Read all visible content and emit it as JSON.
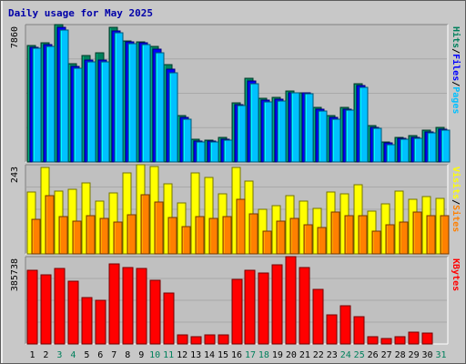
{
  "chart_data": {
    "type": "bar",
    "title": "Daily usage for May 2025",
    "categories": [
      "1",
      "2",
      "3",
      "4",
      "5",
      "6",
      "7",
      "8",
      "9",
      "10",
      "11",
      "12",
      "13",
      "14",
      "15",
      "16",
      "17",
      "18",
      "19",
      "20",
      "21",
      "22",
      "23",
      "24",
      "25",
      "26",
      "27",
      "28",
      "29",
      "30",
      "31"
    ],
    "weekend_categories": [
      "3",
      "4",
      "10",
      "11",
      "17",
      "18",
      "24",
      "25",
      "31"
    ],
    "colors": {
      "hits": "#00805c",
      "files": "#0000ff",
      "pages": "#00c0ff",
      "visits": "#ffff00",
      "sites": "#ff8000",
      "kbytes": "#ff0000",
      "weekday_label": "#000000",
      "weekend_label": "#00805c",
      "title": "#0000a8",
      "panel_background": "#c0c0c0",
      "frame_background": "#c8c8c8"
    },
    "panels": [
      {
        "name": "hits-files-pages",
        "scale_label": "7860",
        "ylim": [
          0,
          7860
        ],
        "legend": [
          "Pages",
          "Files",
          "Hits"
        ],
        "series": [
          {
            "name": "Hits",
            "values": [
              6655,
              6800,
              7860,
              5600,
              6100,
              6240,
              7680,
              6930,
              6880,
              6630,
              5560,
              2650,
              1300,
              1250,
              1380,
              3390,
              4780,
              3640,
              3690,
              4060,
              3940,
              3110,
              2650,
              3120,
              4460,
              2090,
              1140,
              1430,
              1520,
              1800,
              1990
            ]
          },
          {
            "name": "Files",
            "values": [
              6550,
              6700,
              7700,
              5450,
              5850,
              5850,
              7520,
              6850,
              6800,
              6440,
              5300,
              2550,
              1200,
              1180,
              1320,
              3300,
              4620,
              3550,
              3600,
              3980,
              3930,
              3020,
              2560,
              3030,
              4380,
              2000,
              1080,
              1350,
              1420,
              1700,
              1850
            ]
          },
          {
            "name": "Pages",
            "values": [
              6500,
              6600,
              7550,
              5350,
              5750,
              5750,
              7380,
              6750,
              6700,
              6240,
              5090,
              2450,
              1150,
              1130,
              1250,
              3230,
              4470,
              3440,
              3500,
              3950,
              3880,
              2920,
              2460,
              2950,
              4290,
              1900,
              1000,
              1300,
              1350,
              1650,
              1800
            ]
          }
        ]
      },
      {
        "name": "visits-sites",
        "scale_label": "243",
        "ylim": [
          0,
          243
        ],
        "legend": [
          "Sites",
          "Visits"
        ],
        "series": [
          {
            "name": "Visits",
            "values": [
              168,
              236,
              172,
              176,
              193,
              145,
              167,
              220,
              243,
              237,
              191,
              140,
              220,
              208,
              163,
              235,
              198,
              121,
              132,
              158,
              143,
              124,
              169,
              163,
              188,
              117,
              137,
              171,
              148,
              157,
              152
            ]
          },
          {
            "name": "Sites",
            "values": [
              95,
              158,
              102,
              90,
              103,
              96,
              88,
              107,
              161,
              141,
              99,
              74,
              101,
              97,
              101,
              150,
              110,
              63,
              90,
              96,
              80,
              73,
              115,
              105,
              105,
              63,
              80,
              87,
              115,
              104,
              104
            ]
          }
        ]
      },
      {
        "name": "kbytes",
        "scale_label": "385738",
        "ylim": [
          0,
          385738
        ],
        "legend": [
          "KBytes"
        ],
        "series": [
          {
            "name": "KBytes",
            "values": [
              326000,
              306000,
              333000,
              277000,
              203000,
              193000,
              353000,
              336000,
              333000,
              282000,
              227000,
              41000,
              32000,
              41000,
              39000,
              285000,
              326000,
              312000,
              351000,
              385738,
              339000,
              240000,
              128000,
              168000,
              122000,
              32000,
              26000,
              31000,
              51000,
              49000,
              0
            ]
          }
        ]
      }
    ]
  }
}
